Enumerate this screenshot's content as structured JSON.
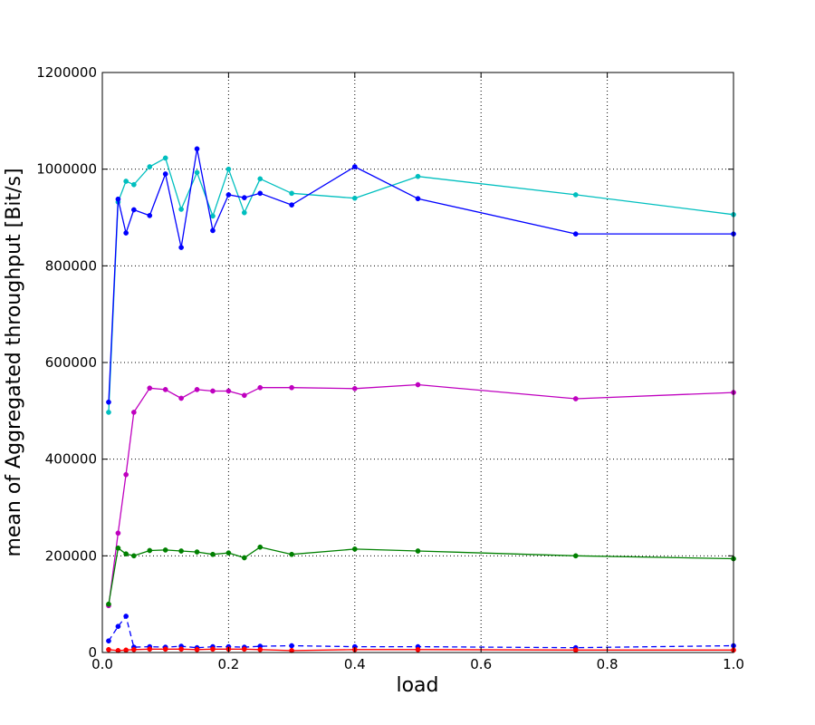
{
  "chart_data": {
    "type": "line",
    "title": "",
    "xlabel": "load",
    "ylabel": "mean of Aggregated throughput [Bit/s]",
    "xlim": [
      0.0,
      1.0
    ],
    "ylim": [
      0,
      1200000
    ],
    "xticks": [
      0.0,
      0.2,
      0.4,
      0.6,
      0.8,
      1.0
    ],
    "xtick_labels": [
      "0.0",
      "0.2",
      "0.4",
      "0.6",
      "0.8",
      "1.0"
    ],
    "yticks": [
      0,
      200000,
      400000,
      600000,
      800000,
      1000000,
      1200000
    ],
    "ytick_labels": [
      "0",
      "200000",
      "400000",
      "600000",
      "800000",
      "1000000",
      "1200000"
    ],
    "grid": true,
    "legend": "none",
    "series": [
      {
        "color": "#00bfbf",
        "dash": "solid",
        "x": [
          0.01,
          0.025,
          0.0375,
          0.05,
          0.075,
          0.1,
          0.125,
          0.15,
          0.175,
          0.2,
          0.225,
          0.25,
          0.3,
          0.4,
          0.5,
          0.75,
          1.0
        ],
        "y": [
          497000,
          932000,
          975000,
          968000,
          1005000,
          1023000,
          917000,
          993000,
          903000,
          1000000,
          910000,
          980000,
          950000,
          940000,
          985000,
          947000,
          906000
        ]
      },
      {
        "color": "#0000ff",
        "dash": "solid",
        "x": [
          0.01,
          0.025,
          0.0375,
          0.05,
          0.075,
          0.1,
          0.125,
          0.15,
          0.175,
          0.2,
          0.225,
          0.25,
          0.3,
          0.4,
          0.5,
          0.75,
          1.0
        ],
        "y": [
          518000,
          938000,
          868000,
          916000,
          904000,
          990000,
          838000,
          1042000,
          873000,
          947000,
          941000,
          950000,
          926000,
          1005000,
          939000,
          866000,
          866000
        ]
      },
      {
        "color": "#bf00bf",
        "dash": "solid",
        "x": [
          0.01,
          0.025,
          0.0375,
          0.05,
          0.075,
          0.1,
          0.125,
          0.15,
          0.175,
          0.2,
          0.225,
          0.25,
          0.3,
          0.4,
          0.5,
          0.75,
          1.0
        ],
        "y": [
          97000,
          247000,
          368000,
          497000,
          547000,
          544000,
          526000,
          544000,
          541000,
          541000,
          532000,
          548000,
          548000,
          546000,
          554000,
          525000,
          538000
        ]
      },
      {
        "color": "#008000",
        "dash": "solid",
        "x": [
          0.01,
          0.025,
          0.0375,
          0.05,
          0.075,
          0.1,
          0.125,
          0.15,
          0.175,
          0.2,
          0.225,
          0.25,
          0.3,
          0.4,
          0.5,
          0.75,
          1.0
        ],
        "y": [
          100000,
          216000,
          204000,
          200000,
          211000,
          212000,
          210000,
          208000,
          203000,
          206000,
          196000,
          218000,
          203000,
          214000,
          210000,
          200000,
          194000
        ]
      },
      {
        "color": "#0000ff",
        "dash": "dashed",
        "x": [
          0.01,
          0.025,
          0.0375,
          0.05,
          0.075,
          0.1,
          0.125,
          0.15,
          0.175,
          0.2,
          0.225,
          0.25,
          0.3,
          0.4,
          0.5,
          0.75,
          1.0
        ],
        "y": [
          24000,
          54000,
          75000,
          11000,
          12000,
          11000,
          13000,
          10000,
          12000,
          12000,
          11000,
          13000,
          14000,
          12000,
          12000,
          10000,
          14000
        ]
      },
      {
        "color": "#ff0000",
        "dash": "solid",
        "x": [
          0.01,
          0.025,
          0.0375,
          0.05,
          0.075,
          0.1,
          0.125,
          0.15,
          0.175,
          0.2,
          0.225,
          0.25,
          0.3,
          0.4,
          0.5,
          0.75,
          1.0
        ],
        "y": [
          6000,
          4000,
          5000,
          6000,
          7000,
          7000,
          7000,
          6000,
          7000,
          7000,
          7000,
          6000,
          4000,
          6000,
          6000,
          5000,
          5000
        ]
      }
    ]
  }
}
